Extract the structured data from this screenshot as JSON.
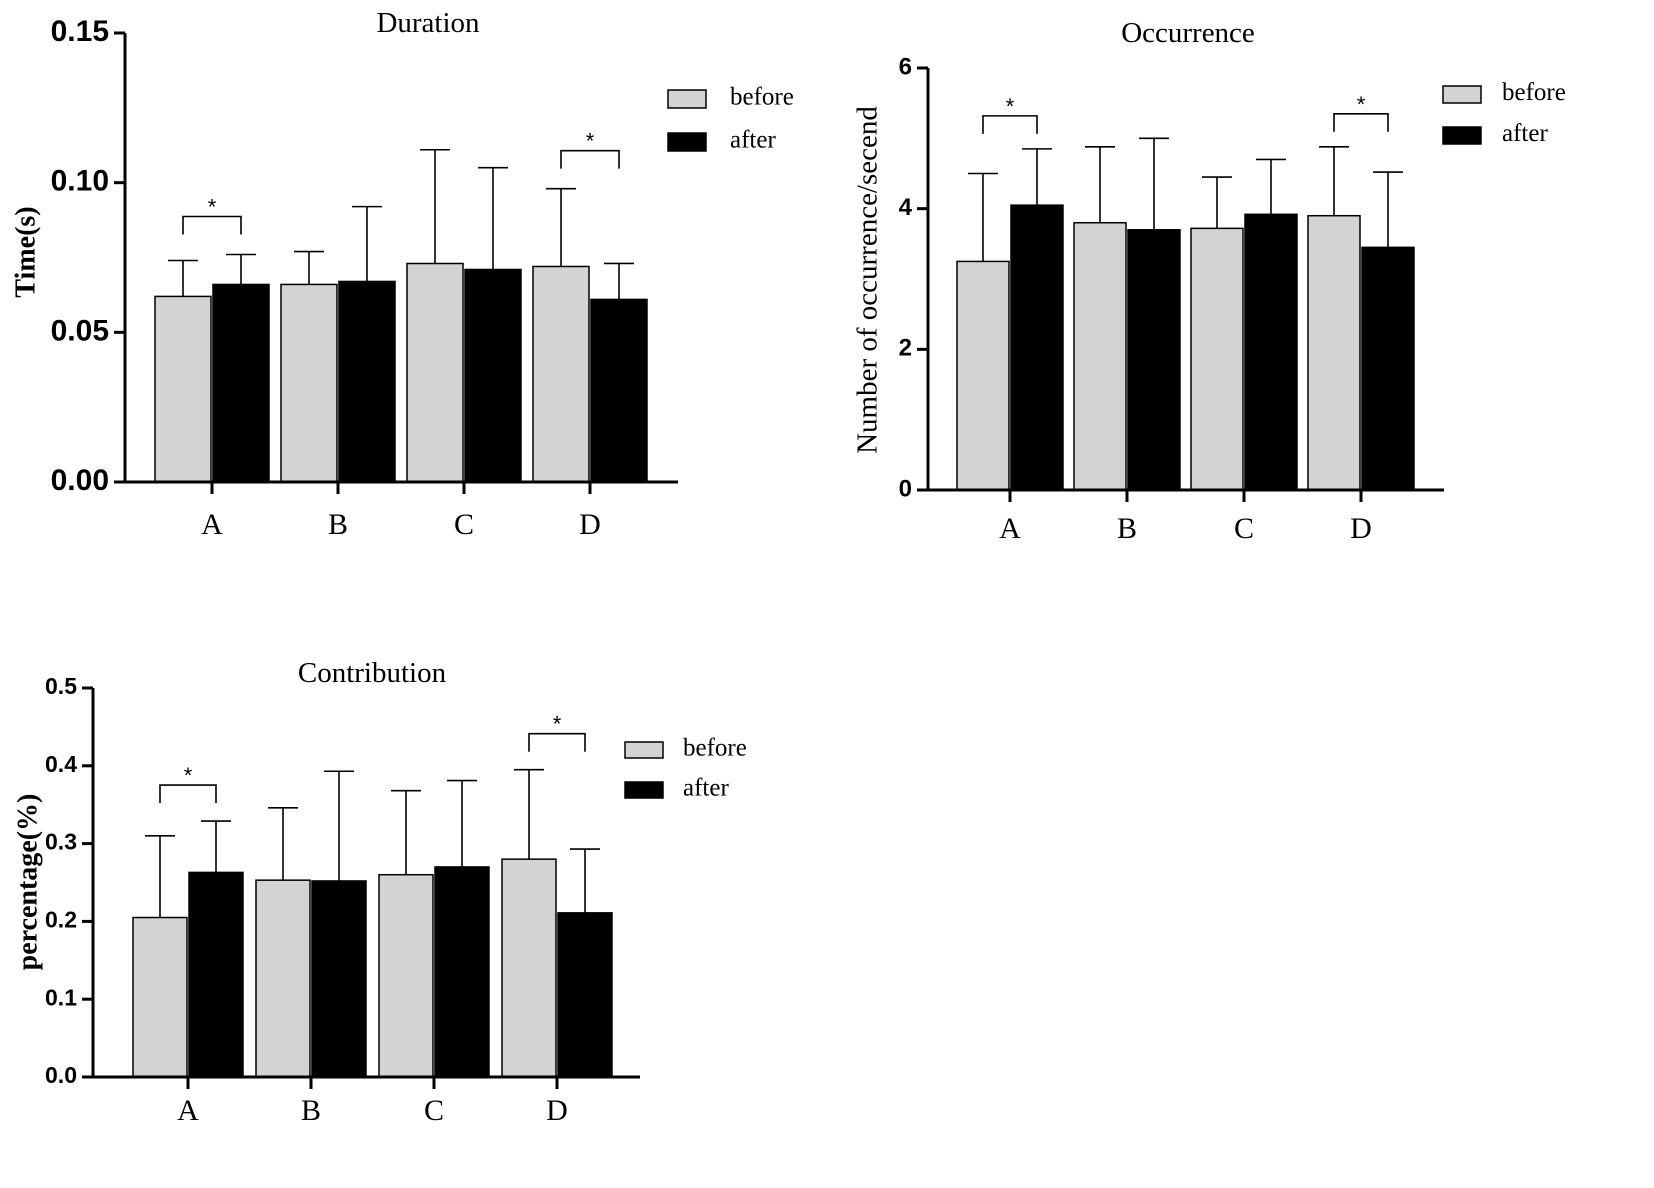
{
  "colors": {
    "before": "#d3d3d3",
    "after": "#000000",
    "axis": "#000000"
  },
  "legend": {
    "before": "before",
    "after": "after"
  },
  "chart_data": [
    {
      "type": "bar",
      "title": "Duration",
      "xlabel": "",
      "ylabel": "Time(s)",
      "categories": [
        "A",
        "B",
        "C",
        "D"
      ],
      "ylim": [
        0,
        0.15
      ],
      "yticks": [
        "0.00",
        "0.05",
        "0.10",
        "0.15"
      ],
      "series": [
        {
          "name": "before",
          "values": [
            0.062,
            0.066,
            0.073,
            0.072
          ],
          "errors": [
            0.012,
            0.011,
            0.038,
            0.026
          ]
        },
        {
          "name": "after",
          "values": [
            0.066,
            0.067,
            0.071,
            0.061
          ],
          "errors": [
            0.01,
            0.025,
            0.034,
            0.012
          ]
        }
      ],
      "significance": [
        {
          "category": "A",
          "label": "*"
        },
        {
          "category": "D",
          "label": "*"
        }
      ],
      "legend_position": "top-right"
    },
    {
      "type": "bar",
      "title": "Occurrence",
      "xlabel": "",
      "ylabel": "Number of occurrence/secend",
      "categories": [
        "A",
        "B",
        "C",
        "D"
      ],
      "ylim": [
        0,
        6
      ],
      "yticks": [
        "0",
        "2",
        "4",
        "6"
      ],
      "series": [
        {
          "name": "before",
          "values": [
            3.25,
            3.8,
            3.72,
            3.9
          ],
          "errors": [
            1.25,
            1.08,
            0.73,
            0.98
          ]
        },
        {
          "name": "after",
          "values": [
            4.05,
            3.7,
            3.92,
            3.45
          ],
          "errors": [
            0.8,
            1.3,
            0.78,
            1.07
          ]
        }
      ],
      "significance": [
        {
          "category": "A",
          "label": "*"
        },
        {
          "category": "D",
          "label": "*"
        }
      ],
      "legend_position": "top-right"
    },
    {
      "type": "bar",
      "title": "Contribution",
      "xlabel": "",
      "ylabel": "percentage(%)",
      "categories": [
        "A",
        "B",
        "C",
        "D"
      ],
      "ylim": [
        0,
        0.5
      ],
      "yticks": [
        "0.0",
        "0.1",
        "0.2",
        "0.3",
        "0.4",
        "0.5"
      ],
      "series": [
        {
          "name": "before",
          "values": [
            0.205,
            0.253,
            0.26,
            0.28
          ],
          "errors": [
            0.105,
            0.093,
            0.108,
            0.115
          ]
        },
        {
          "name": "after",
          "values": [
            0.263,
            0.252,
            0.27,
            0.211
          ],
          "errors": [
            0.066,
            0.141,
            0.111,
            0.082
          ]
        }
      ],
      "significance": [
        {
          "category": "A",
          "label": "*"
        },
        {
          "category": "D",
          "label": "*"
        }
      ],
      "legend_position": "top-right"
    }
  ]
}
